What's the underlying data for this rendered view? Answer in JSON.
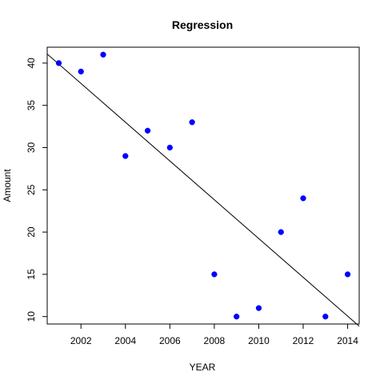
{
  "chart_data": {
    "type": "scatter",
    "title": "Regression",
    "xlabel": "YEAR",
    "ylabel": "Amount",
    "xlim": [
      2000.48,
      2014.52
    ],
    "ylim": [
      9.12,
      41.88
    ],
    "x_ticks": [
      2002,
      2004,
      2006,
      2008,
      2010,
      2012,
      2014
    ],
    "y_ticks": [
      10,
      15,
      20,
      25,
      30,
      35,
      40
    ],
    "grid": false,
    "legend": "none",
    "point_color": "#0000ff",
    "line_color": "#000000",
    "series": [
      {
        "x": [
          2001,
          2002,
          2003,
          2004,
          2005,
          2006,
          2007,
          2008,
          2009,
          2010,
          2011,
          2012,
          2013,
          2014
        ],
        "y": [
          40,
          39,
          41,
          29,
          32,
          30,
          33,
          15,
          10,
          11,
          20,
          24,
          10,
          15
        ]
      }
    ],
    "regression_line": {
      "x": [
        2000.48,
        2014.52
      ],
      "y": [
        41.08,
        8.86
      ]
    }
  }
}
